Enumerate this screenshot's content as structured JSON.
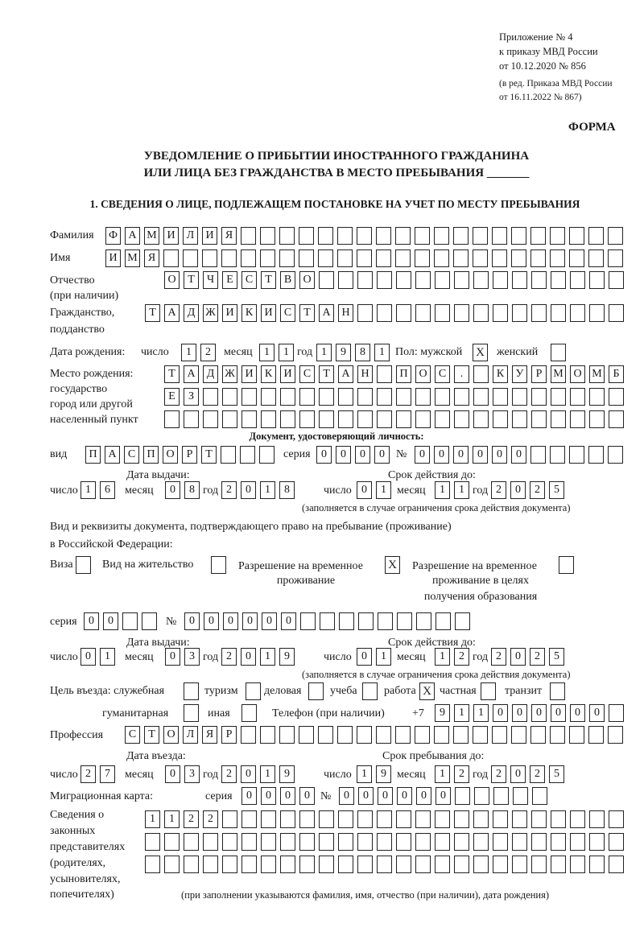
{
  "header": {
    "appendix": "Приложение № 4",
    "order": "к приказу МВД России",
    "order_date": "от 10.12.2020 № 856",
    "edition1": "(в ред. Приказа МВД России",
    "edition2": "от 16.11.2022 № 867)"
  },
  "form_label": "ФОРМА",
  "title": {
    "line1": "УВЕДОМЛЕНИЕ О ПРИБЫТИИ ИНОСТРАННОГО ГРАЖДАНИНА",
    "line2": "ИЛИ ЛИЦА БЕЗ ГРАЖДАНСТВА В МЕСТО ПРЕБЫВАНИЯ _______"
  },
  "section1": "1. СВЕДЕНИЯ О ЛИЦЕ, ПОДЛЕЖАЩЕМ ПОСТАНОВКЕ НА УЧЕТ ПО МЕСТУ ПРЕБЫВАНИЯ",
  "person": {
    "surname_label": "Фамилия",
    "surname": "ФАМИЛИЯ",
    "name_label": "Имя",
    "name": "ИМЯ",
    "patronymic_label1": "Отчество",
    "patronymic_label2": "(при наличии)",
    "patronymic": "ОТЧЕСТВО",
    "citizenship_label1": "Гражданство,",
    "citizenship_label2": "подданство",
    "citizenship": "ТАДЖИКИСТАН",
    "birth_label": "Дата рождения:",
    "day_label": "число",
    "month_label": "месяц",
    "year_label": "год",
    "birth_day": "12",
    "birth_month": "11",
    "birth_year": "1981",
    "sex_label": "Пол: мужской",
    "female_label": "женский",
    "male_mark": "X",
    "female_mark": "",
    "birthplace_label1": "Место рождения:",
    "birthplace_label2": "государство",
    "birthplace_label3": "город или другой",
    "birthplace_label4": "населенный пункт",
    "birthplace_line1": "ТАДЖИКИСТАН ПОС. КУРМОМБ",
    "birthplace_line2": "ЕЗ",
    "birthplace_line3": ""
  },
  "id_document": {
    "heading": "Документ, удостоверяющий личность:",
    "kind_label": "вид",
    "kind": "ПАСПОРТ",
    "series_label": "серия",
    "series": "0000",
    "number_label": "№",
    "number": "000000",
    "issue_label": "Дата выдачи:",
    "valid_label": "Срок действия до:",
    "day_label": "число",
    "month_label": "месяц",
    "year_label": "год",
    "issue_day": "16",
    "issue_month": "08",
    "issue_year": "2018",
    "valid_day": "01",
    "valid_month": "11",
    "valid_year": "2025",
    "note": "(заполняется в случае ограничения срока действия документа)"
  },
  "stay_document": {
    "heading1": "Вид и реквизиты документа, подтверждающего право на пребывание (проживание)",
    "heading2": "в Российской Федерации:",
    "visa_label": "Виза",
    "visa_mark": "",
    "residence_label": "Вид на жительство",
    "residence_mark": "",
    "temp_label1": "Разрешение на временное",
    "temp_label2": "проживание",
    "temp_mark": "X",
    "edu_label1": "Разрешение на временное",
    "edu_label2": "проживание в целях",
    "edu_label3": "получения образования",
    "edu_mark": "",
    "series_label": "серия",
    "series": "00",
    "number_label": "№",
    "number": "000000",
    "issue_label": "Дата выдачи:",
    "valid_label": "Срок действия до:",
    "day_label": "число",
    "month_label": "месяц",
    "year_label": "год",
    "issue_day": "01",
    "issue_month": "03",
    "issue_year": "2019",
    "valid_day": "01",
    "valid_month": "12",
    "valid_year": "2025",
    "note": "(заполняется в случае ограничения срока действия документа)"
  },
  "purpose": {
    "label": "Цель въезда: служебная",
    "official": "",
    "tourism_label": "туризм",
    "tourism": "",
    "business_label": "деловая",
    "business": "",
    "study_label": "учеба",
    "study": "",
    "work_label": "работа",
    "work": "X",
    "private_label": "частная",
    "private": "",
    "transit_label": "транзит",
    "transit": "",
    "humanitarian_label": "гуманитарная",
    "humanitarian": "",
    "other_label": "иная",
    "other": ""
  },
  "phone": {
    "label": "Телефон (при наличии)",
    "prefix": "+7",
    "value": "911000000"
  },
  "profession": {
    "label": "Профессия",
    "value": "СТОЛЯР"
  },
  "entry": {
    "entry_label": "Дата въезда:",
    "stay_label": "Срок пребывания до:",
    "day_label": "число",
    "month_label": "месяц",
    "year_label": "год",
    "entry_day": "27",
    "entry_month": "03",
    "entry_year": "2019",
    "stay_day": "19",
    "stay_month": "12",
    "stay_year": "2025"
  },
  "migration_card": {
    "label": "Миграционная карта:",
    "series_label": "серия",
    "series": "0000",
    "number_label": "№",
    "number": "000000"
  },
  "representatives": {
    "label1": "Сведения о",
    "label2": "законных",
    "label3": "представителях",
    "label4": "(родителях,",
    "label5": "усыновителях,",
    "label6": "попечителях)",
    "line1": "1122",
    "line2": "",
    "line3": "",
    "note": "(при заполнении указываются фамилия, имя, отчество (при наличии), дата рождения)"
  }
}
